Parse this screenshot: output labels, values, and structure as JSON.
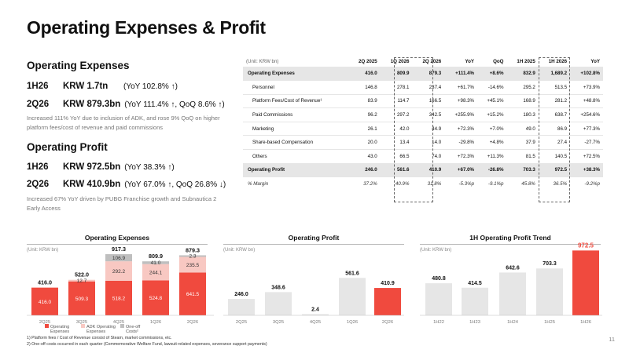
{
  "title": "Operating Expenses & Profit",
  "left": {
    "opex_heading": "Operating Expenses",
    "opex_rows": [
      {
        "period": "1H26",
        "value": "KRW 1.7tn",
        "note": "(YoY 102.8% ↑)"
      },
      {
        "period": "2Q26",
        "value": "KRW 879.3bn",
        "note": "(YoY 111.4% ↑, QoQ 8.6% ↑)"
      }
    ],
    "opex_note": "Increased 111% YoY due to inclusion of ADK, and rose 9% QoQ on higher platform fees/cost of revenue and paid commissions",
    "op_heading": "Operating Profit",
    "op_rows": [
      {
        "period": "1H26",
        "value": "KRW 972.5bn",
        "note": "(YoY 38.3% ↑)"
      },
      {
        "period": "2Q26",
        "value": "KRW 410.9bn",
        "note": "(YoY 67.0% ↑, QoQ 26.8% ↓)"
      }
    ],
    "op_note": "Increased 67% YoY driven by PUBG Franchise growth and Subnautica 2 Early Access"
  },
  "table": {
    "headers": [
      "(Unit: KRW bn)",
      "2Q 2025",
      "1Q 2026",
      "2Q 2026",
      "YoY",
      "QoQ",
      "1H 2025",
      "1H 2026",
      "YoY"
    ],
    "rows": [
      [
        "Operating Expenses",
        "416.0",
        "809.9",
        "879.3",
        "+111.4%",
        "+8.6%",
        "832.9",
        "1,689.2",
        "+102.8%"
      ],
      [
        "Personnel",
        "146.8",
        "278.1",
        "237.4",
        "+61.7%",
        "-14.6%",
        "295.2",
        "513.5",
        "+73.9%"
      ],
      [
        "Platform Fees/Cost of Revenue¹",
        "83.9",
        "114.7",
        "166.5",
        "+98.3%",
        "+45.1%",
        "168.9",
        "281.2",
        "+48.8%"
      ],
      [
        "Paid Commissions",
        "96.2",
        "297.2",
        "342.5",
        "+255.9%",
        "+15.2%",
        "180.3",
        "638.7",
        "+254.6%"
      ],
      [
        "Marketing",
        "26.1",
        "42.0",
        "44.9",
        "+72.3%",
        "+7.0%",
        "49.0",
        "86.9",
        "+77.3%"
      ],
      [
        "Share-based Compensation",
        "20.0",
        "13.4",
        "14.0",
        "-29.8%",
        "+4.8%",
        "37.9",
        "27.4",
        "-27.7%"
      ],
      [
        "Others",
        "43.0",
        "66.5",
        "74.0",
        "+72.3%",
        "+11.3%",
        "81.5",
        "140.5",
        "+72.5%"
      ],
      [
        "Operating Profit",
        "246.0",
        "561.6",
        "410.9",
        "+67.0%",
        "-26.8%",
        "703.3",
        "972.5",
        "+38.3%"
      ],
      [
        "% Margin",
        "37.2%",
        "40.9%",
        "31.8%",
        "-5.3%p",
        "-9.1%p",
        "45.8%",
        "36.5%",
        "-9.2%p"
      ]
    ]
  },
  "charts": {
    "unit_label": "(Unit: KRW bn)",
    "colors": {
      "red": "#f04a3e",
      "pink": "#f8c8c2",
      "gray": "#bfbfbf",
      "lightgray": "#e6e6e6"
    }
  },
  "chart_data": [
    {
      "type": "bar",
      "title": "Operating Expenses",
      "categories": [
        "2Q25",
        "3Q25",
        "4Q25",
        "1Q26",
        "2Q26"
      ],
      "series": [
        {
          "name": "Operating Expenses",
          "values": [
            416.0,
            509.3,
            518.2,
            524.8,
            641.5
          ]
        },
        {
          "name": "ADK Operating Expenses",
          "values": [
            0,
            12.7,
            292.2,
            244.1,
            235.5
          ]
        },
        {
          "name": "One-off Costs²",
          "values": [
            0,
            0,
            106.9,
            41.0,
            2.3
          ]
        }
      ],
      "totals": [
        "416.0",
        "522.0",
        "917.3",
        "809.9",
        "879.3"
      ],
      "segment_labels": [
        [
          "416.0",
          "",
          ""
        ],
        [
          "509.3",
          "12.7",
          ""
        ],
        [
          "518.2",
          "292.2",
          "106.9"
        ],
        [
          "524.8",
          "244.1",
          "41.0"
        ],
        [
          "641.5",
          "235.5",
          "2.3"
        ]
      ]
    },
    {
      "type": "bar",
      "title": "Operating Profit",
      "categories": [
        "2Q25",
        "3Q25",
        "4Q25",
        "1Q26",
        "2Q26"
      ],
      "values": [
        246.0,
        348.6,
        2.4,
        561.6,
        410.9
      ],
      "labels": [
        "246.0",
        "348.6",
        "2.4",
        "561.6",
        "410.9"
      ]
    },
    {
      "type": "bar",
      "title": "1H Operating Profit Trend",
      "categories": [
        "1H22",
        "1H23",
        "1H24",
        "1H25",
        "1H26"
      ],
      "values": [
        480.8,
        414.5,
        642.6,
        703.3,
        972.5
      ],
      "labels": [
        "480.8",
        "414.5",
        "642.6",
        "703.3",
        "972.5"
      ]
    }
  ],
  "footnotes": [
    "1) Platform fees / Cost of Revenue consist of Steam, market commissions, etc.",
    "2) One-off costs occurred in each quarter (Commemorative Welfare Fund, lawsuit-related expenses, severance support payments)"
  ],
  "page_number": "11"
}
